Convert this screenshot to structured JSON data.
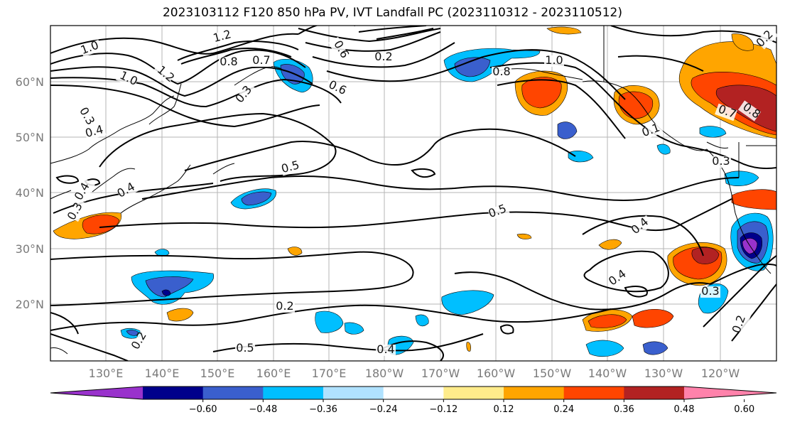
{
  "title": "2023103112 F120 850 hPa PV, IVT Landfall PC (2023110312 - 2023110512)",
  "lon_labels": [
    "130°E",
    "140°E",
    "150°E",
    "160°E",
    "170°E",
    "180°W",
    "170°W",
    "160°W",
    "150°W",
    "140°W",
    "130°W",
    "120°W"
  ],
  "lat_labels": [
    "60°N",
    "50°N",
    "40°N",
    "30°N",
    "20°N"
  ],
  "contour_labels": [
    "1.2",
    "1.0",
    "0.8",
    "0.7",
    "0.3",
    "0.4",
    "0.5",
    "1.0",
    "1.2",
    "0.3",
    "0.4",
    "0.3",
    "0.6",
    "0.8",
    "0.6",
    "1.0",
    "0.7",
    "0.8",
    "0.1",
    "0.3",
    "0.4",
    "0.5",
    "0.4",
    "0.3",
    "0.4",
    "0.5",
    "0.4",
    "0.2",
    "0.2",
    "0.2",
    "0.2",
    "0.2"
  ],
  "colorbar": {
    "ticks": [
      "−0.60",
      "−0.48",
      "−0.36",
      "−0.24",
      "−0.12",
      "0.12",
      "0.24",
      "0.36",
      "0.48",
      "0.60"
    ],
    "colors": [
      "#9932cc",
      "#00008b",
      "#3a5fcd",
      "#00bfff",
      "#b0e2ff",
      "#ffffff",
      "#ffec8b",
      "#ffa500",
      "#ff4500",
      "#b22222",
      "#ff82ab"
    ]
  }
}
